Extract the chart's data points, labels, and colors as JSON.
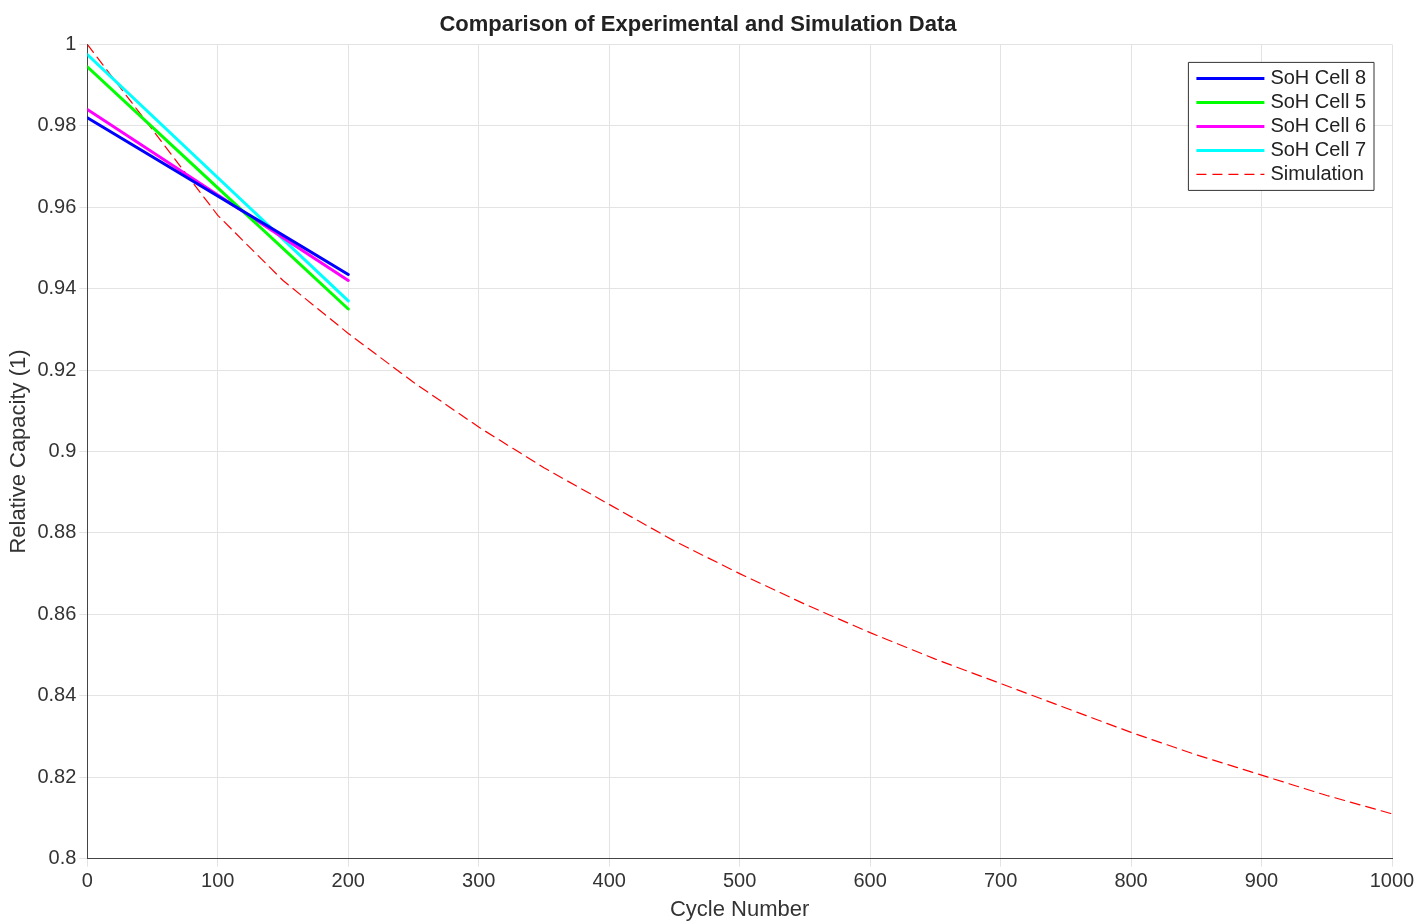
{
  "chart_data": {
    "type": "line",
    "title": "Comparison of Experimental and Simulation Data",
    "xlabel": "Cycle Number",
    "ylabel": "Relative Capacity (1)",
    "xlim": [
      0,
      1000
    ],
    "xticks": [
      0,
      100,
      200,
      300,
      400,
      500,
      600,
      700,
      800,
      900,
      1000
    ],
    "ylim": [
      0.8,
      1
    ],
    "yticks": [
      0.8,
      0.82,
      0.84,
      0.86,
      0.88,
      0.9,
      0.92,
      0.94,
      0.96,
      0.98,
      1
    ],
    "grid": true,
    "legend": "top right",
    "marker": "none",
    "series": [
      {
        "name": "SoH Cell 8",
        "color": "#0000ff",
        "x": [
          0,
          200
        ],
        "values": [
          0.982,
          0.9435
        ],
        "line_style": "solid"
      },
      {
        "name": "SoH Cell 5",
        "color": "#00ff00",
        "x": [
          0,
          200
        ],
        "values": [
          0.9945,
          0.935
        ],
        "line_style": "solid"
      },
      {
        "name": "SoH Cell 6",
        "color": "#ff00ff",
        "x": [
          0,
          200
        ],
        "values": [
          0.984,
          0.942
        ],
        "line_style": "solid"
      },
      {
        "name": "SoH Cell 7",
        "color": "#00ffff",
        "x": [
          0,
          200
        ],
        "values": [
          0.9975,
          0.937
        ],
        "line_style": "solid"
      },
      {
        "name": "Simulation",
        "color": "#ff0000",
        "x": [
          0,
          50,
          100,
          150,
          200,
          250,
          300,
          350,
          400,
          450,
          500,
          550,
          600,
          650,
          700,
          750,
          800,
          850,
          900,
          950,
          1000
        ],
        "values": [
          1,
          0.979,
          0.958,
          0.942,
          0.929,
          0.917,
          0.906,
          0.896,
          0.887,
          0.878,
          0.87,
          0.8625,
          0.8555,
          0.849,
          0.843,
          0.837,
          0.831,
          0.8255,
          0.8205,
          0.8155,
          0.811
        ],
        "line_style": "dashed"
      }
    ]
  }
}
